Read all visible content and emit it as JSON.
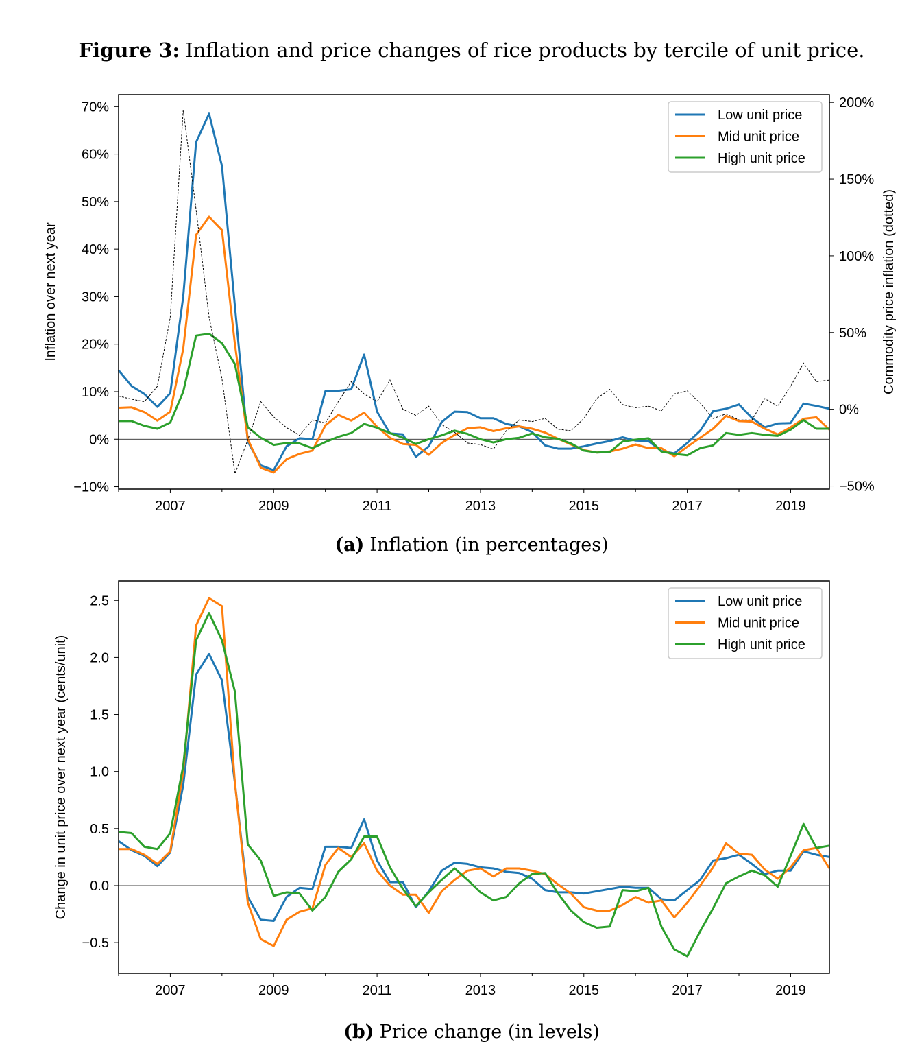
{
  "figure": {
    "label": "Figure 3:",
    "title": "Inflation and price changes of rice products by tercile of unit price."
  },
  "chart_data": [
    {
      "type": "line",
      "panel_label": "(a)",
      "caption": "Inflation (in percentages)",
      "ylabel": "Inflation over next year",
      "ylabel_right": "Commodity price inflation (dotted)",
      "ylim": [
        -10.5,
        72.5
      ],
      "ylim_right": [
        -52,
        205
      ],
      "xlim": [
        2006.0,
        2019.75
      ],
      "yticks": [
        {
          "v": -10,
          "label": "−10%"
        },
        {
          "v": 0,
          "label": "0%"
        },
        {
          "v": 10,
          "label": "10%"
        },
        {
          "v": 20,
          "label": "20%"
        },
        {
          "v": 30,
          "label": "30%"
        },
        {
          "v": 40,
          "label": "40%"
        },
        {
          "v": 50,
          "label": "50%"
        },
        {
          "v": 60,
          "label": "60%"
        },
        {
          "v": 70,
          "label": "70%"
        }
      ],
      "yticks_right": [
        {
          "v": -50,
          "label": "−50%"
        },
        {
          "v": 0,
          "label": "0%"
        },
        {
          "v": 50,
          "label": "50%"
        },
        {
          "v": 100,
          "label": "100%"
        },
        {
          "v": 150,
          "label": "150%"
        },
        {
          "v": 200,
          "label": "200%"
        }
      ],
      "xticks": [
        {
          "v": 2007,
          "label": "2007"
        },
        {
          "v": 2009,
          "label": "2009"
        },
        {
          "v": 2011,
          "label": "2011"
        },
        {
          "v": 2013,
          "label": "2013"
        },
        {
          "v": 2015,
          "label": "2015"
        },
        {
          "v": 2017,
          "label": "2017"
        },
        {
          "v": 2019,
          "label": "2019"
        }
      ],
      "x_start": 2006.0,
      "x_step": 0.25,
      "legend_position": "top-right",
      "series": [
        {
          "name": "Low unit price",
          "color": "#1f77b4",
          "values": [
            14.5,
            11.2,
            9.5,
            6.8,
            9.7,
            30,
            62.5,
            68.5,
            57.5,
            28,
            -0.5,
            -5.5,
            -6.5,
            -1.5,
            0.2,
            0,
            10.1,
            10.2,
            10.5,
            17.8,
            5.8,
            1.2,
            1.0,
            -3.7,
            -1.5,
            3.6,
            5.8,
            5.7,
            4.4,
            4.4,
            3.2,
            2.7,
            1.5,
            -1.3,
            -2,
            -2,
            -1.5,
            -0.9,
            -0.4,
            0.4,
            -0.3,
            -0.4,
            -2.5,
            -3.0,
            -0.8,
            1.8,
            5.9,
            6.4,
            7.3,
            4.5,
            2.5,
            3.3,
            3.4,
            7.5,
            7.0,
            6.4
          ]
        },
        {
          "name": "Mid unit price",
          "color": "#ff7f0e",
          "values": [
            6.6,
            6.7,
            5.7,
            3.9,
            5.8,
            19,
            43,
            46.8,
            44,
            20,
            0,
            -6,
            -7,
            -4.2,
            -3.1,
            -2.4,
            2.9,
            5.1,
            3.9,
            5.6,
            2.6,
            0.3,
            -1.0,
            -1.2,
            -3.3,
            -0.8,
            0.9,
            2.3,
            2.5,
            1.7,
            2.3,
            2.7,
            2.2,
            1.4,
            0.1,
            -1.1,
            -2.3,
            -2.8,
            -2.6,
            -2.0,
            -1.1,
            -1.9,
            -1.9,
            -3.6,
            -1.6,
            0.3,
            2.2,
            4.9,
            3.8,
            3.7,
            2.2,
            1.0,
            2.5,
            4.3,
            4.6,
            2.0
          ]
        },
        {
          "name": "High unit price",
          "color": "#2ca02c",
          "values": [
            3.8,
            3.8,
            2.8,
            2.2,
            3.5,
            10,
            21.8,
            22.2,
            20.2,
            15.8,
            2.5,
            0.3,
            -1.2,
            -0.8,
            -0.9,
            -1.9,
            -0.6,
            0.5,
            1.3,
            3.2,
            2.4,
            1.3,
            0.3,
            -1.0,
            0,
            0.8,
            1.8,
            1.1,
            0,
            -0.7,
            0,
            0.3,
            1.2,
            0.4,
            0.1,
            -0.9,
            -2.4,
            -2.8,
            -2.7,
            -0.5,
            -0.1,
            0.2,
            -2.6,
            -3.1,
            -3.4,
            -1.9,
            -1.3,
            1.3,
            0.9,
            1.3,
            0.9,
            0.7,
            2.0,
            4.0,
            2.2,
            2.2
          ]
        }
      ],
      "right_series": {
        "name": "Commodity price inflation",
        "color": "#000000",
        "style": "dotted",
        "values": [
          8.6,
          6.6,
          5,
          15,
          60,
          195,
          130,
          60,
          20,
          -42,
          -20,
          5,
          -5,
          -12,
          -17,
          -7,
          -9,
          5,
          18,
          10,
          5,
          19,
          0,
          -4,
          2,
          -10,
          -15,
          -22,
          -23,
          -26,
          -14,
          -7,
          -8,
          -6,
          -13,
          -14,
          -6,
          7,
          13,
          3,
          1,
          2,
          -1,
          10,
          12,
          4,
          -6,
          -3,
          -7,
          -7,
          7,
          2,
          15,
          30,
          18,
          19
        ]
      }
    },
    {
      "type": "line",
      "panel_label": "(b)",
      "caption": "Price change (in levels)",
      "ylabel": "Change in unit price over next year (cents/unit)",
      "ylim": [
        -0.77,
        2.67
      ],
      "xlim": [
        2006.0,
        2019.75
      ],
      "yticks": [
        {
          "v": -0.5,
          "label": "−0.5"
        },
        {
          "v": 0,
          "label": "0.0"
        },
        {
          "v": 0.5,
          "label": "0.5"
        },
        {
          "v": 1.0,
          "label": "1.0"
        },
        {
          "v": 1.5,
          "label": "1.5"
        },
        {
          "v": 2.0,
          "label": "2.0"
        },
        {
          "v": 2.5,
          "label": "2.5"
        }
      ],
      "xticks": [
        {
          "v": 2007,
          "label": "2007"
        },
        {
          "v": 2009,
          "label": "2009"
        },
        {
          "v": 2011,
          "label": "2011"
        },
        {
          "v": 2013,
          "label": "2013"
        },
        {
          "v": 2015,
          "label": "2015"
        },
        {
          "v": 2017,
          "label": "2017"
        },
        {
          "v": 2019,
          "label": "2019"
        }
      ],
      "x_start": 2006.0,
      "x_step": 0.25,
      "legend_position": "top-right",
      "series": [
        {
          "name": "Low unit price",
          "color": "#1f77b4",
          "values": [
            0.39,
            0.31,
            0.26,
            0.17,
            0.29,
            0.88,
            1.85,
            2.03,
            1.8,
            0.9,
            -0.1,
            -0.3,
            -0.31,
            -0.1,
            -0.02,
            -0.03,
            0.34,
            0.34,
            0.33,
            0.58,
            0.22,
            0.03,
            0.03,
            -0.19,
            -0.05,
            0.13,
            0.2,
            0.19,
            0.16,
            0.15,
            0.12,
            0.11,
            0.06,
            -0.04,
            -0.06,
            -0.06,
            -0.07,
            -0.05,
            -0.03,
            -0.01,
            -0.02,
            -0.02,
            -0.12,
            -0.13,
            -0.04,
            0.05,
            0.22,
            0.24,
            0.27,
            0.19,
            0.1,
            0.13,
            0.13,
            0.3,
            0.27,
            0.25
          ]
        },
        {
          "name": "Mid unit price",
          "color": "#ff7f0e",
          "values": [
            0.32,
            0.32,
            0.27,
            0.19,
            0.3,
            1.0,
            2.28,
            2.52,
            2.45,
            0.9,
            -0.15,
            -0.47,
            -0.53,
            -0.3,
            -0.23,
            -0.2,
            0.18,
            0.33,
            0.25,
            0.37,
            0.13,
            0.0,
            -0.08,
            -0.08,
            -0.24,
            -0.05,
            0.05,
            0.13,
            0.15,
            0.08,
            0.15,
            0.15,
            0.13,
            0.1,
            0.01,
            -0.07,
            -0.19,
            -0.22,
            -0.22,
            -0.17,
            -0.1,
            -0.15,
            -0.13,
            -0.28,
            -0.15,
            0.0,
            0.16,
            0.37,
            0.28,
            0.27,
            0.14,
            0.06,
            0.16,
            0.31,
            0.33,
            0.15
          ]
        },
        {
          "name": "High unit price",
          "color": "#2ca02c",
          "values": [
            0.47,
            0.46,
            0.34,
            0.32,
            0.46,
            1.05,
            2.15,
            2.39,
            2.15,
            1.7,
            0.36,
            0.22,
            -0.09,
            -0.06,
            -0.07,
            -0.22,
            -0.1,
            0.12,
            0.23,
            0.43,
            0.43,
            0.16,
            -0.03,
            -0.18,
            -0.06,
            0.05,
            0.15,
            0.05,
            -0.06,
            -0.13,
            -0.1,
            0.02,
            0.1,
            0.11,
            -0.07,
            -0.22,
            -0.32,
            -0.37,
            -0.36,
            -0.04,
            -0.05,
            -0.02,
            -0.36,
            -0.56,
            -0.62,
            -0.4,
            -0.2,
            0.02,
            0.08,
            0.13,
            0.09,
            -0.01,
            0.26,
            0.54,
            0.33,
            0.35
          ]
        }
      ]
    }
  ]
}
